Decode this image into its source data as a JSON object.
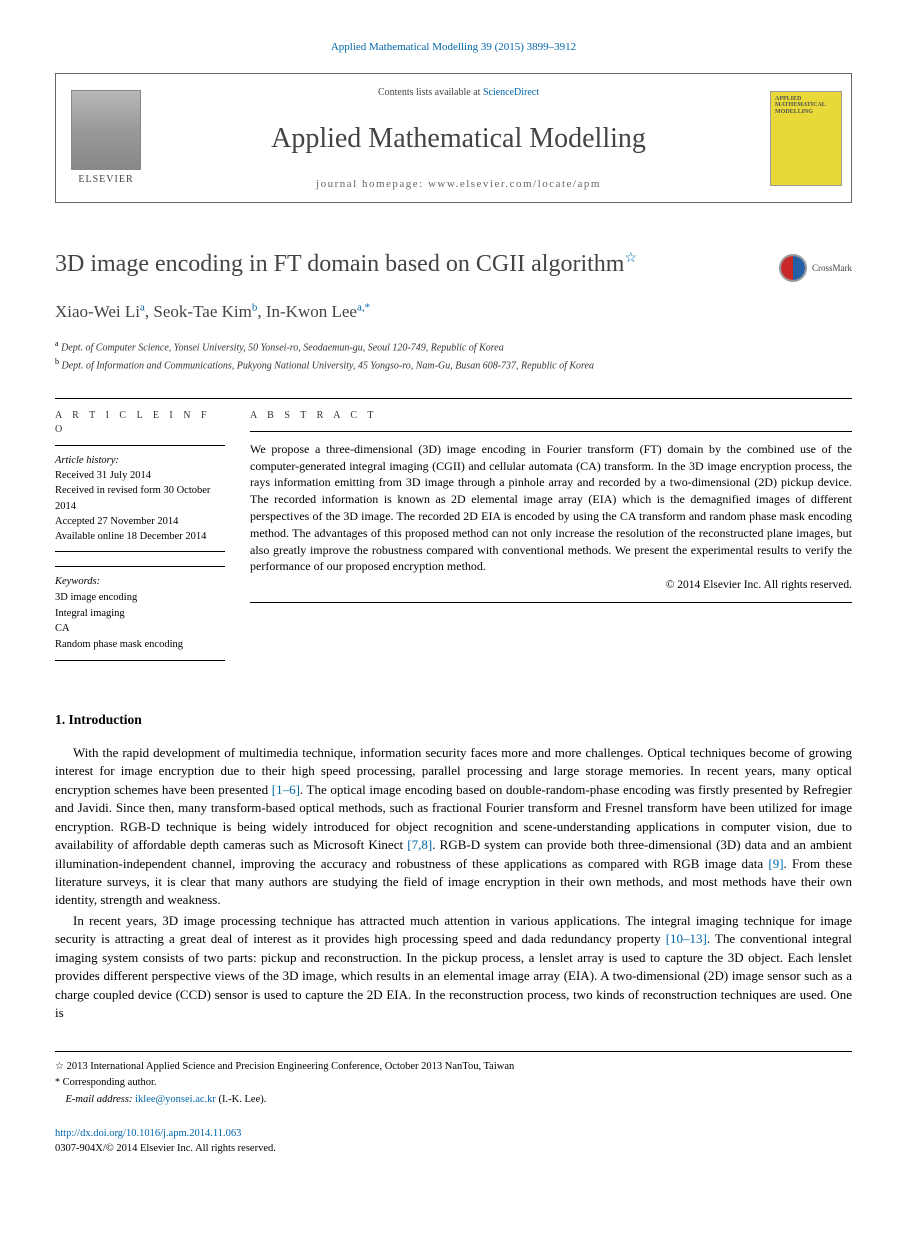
{
  "header": {
    "citation": "Applied Mathematical Modelling 39 (2015) 3899–3912",
    "contents_prefix": "Contents lists available at ",
    "contents_link": "ScienceDirect",
    "journal_name": "Applied Mathematical Modelling",
    "homepage_label": "journal homepage: www.elsevier.com/locate/apm",
    "elsevier_label": "ELSEVIER",
    "cover_title": "APPLIED MATHEMATICAL MODELLING",
    "crossmark_label": "CrossMark"
  },
  "article": {
    "title": "3D image encoding in FT domain based on CGII algorithm",
    "title_note": "☆",
    "authors": [
      {
        "name": "Xiao-Wei Li",
        "aff": "a"
      },
      {
        "name": "Seok-Tae Kim",
        "aff": "b"
      },
      {
        "name": "In-Kwon Lee",
        "aff": "a,*"
      }
    ],
    "authors_html": "Xiao-Wei Li <sup>a</sup>, Seok-Tae Kim <sup>b</sup>, In-Kwon Lee <sup>a,*</sup>",
    "affiliations": {
      "a": "Dept. of Computer Science, Yonsei University, 50 Yonsei-ro, Seodaemun-gu, Seoul 120-749, Republic of Korea",
      "b": "Dept. of Information and Communications, Pukyong National University, 45 Yongso-ro, Nam-Gu, Busan 608-737, Republic of Korea"
    }
  },
  "info": {
    "section_label": "A R T I C L E   I N F O",
    "history_label": "Article history:",
    "history": [
      "Received 31 July 2014",
      "Received in revised form 30 October 2014",
      "Accepted 27 November 2014",
      "Available online 18 December 2014"
    ],
    "keywords_label": "Keywords:",
    "keywords": [
      "3D image encoding",
      "Integral imaging",
      "CA",
      "Random phase mask encoding"
    ]
  },
  "abstract": {
    "section_label": "A B S T R A C T",
    "text": "We propose a three-dimensional (3D) image encoding in Fourier transform (FT) domain by the combined use of the computer-generated integral imaging (CGII) and cellular automata (CA) transform. In the 3D image encryption process, the rays information emitting from 3D image through a pinhole array and recorded by a two-dimensional (2D) pickup device. The recorded information is known as 2D elemental image array (EIA) which is the demagnified images of different perspectives of the 3D image. The recorded 2D EIA is encoded by using the CA transform and random phase mask encoding method. The advantages of this proposed method can not only increase the resolution of the reconstructed plane images, but also greatly improve the robustness compared with conventional methods. We present the experimental results to verify the performance of our proposed encryption method.",
    "copyright": "© 2014 Elsevier Inc. All rights reserved."
  },
  "body": {
    "heading": "1. Introduction",
    "p1_a": "With the rapid development of multimedia technique, information security faces more and more challenges. Optical techniques become of growing interest for image encryption due to their high speed processing, parallel processing and large storage memories. In recent years, many optical encryption schemes have been presented ",
    "p1_ref1": "[1–6]",
    "p1_b": ". The optical image encoding based on double-random-phase encoding was firstly presented by Refregier and Javidi. Since then, many transform-based optical methods, such as fractional Fourier transform and Fresnel transform have been utilized for image encryption. RGB-D technique is being widely introduced for object recognition and scene-understanding applications in computer vision, due to availability of affordable depth cameras such as Microsoft Kinect ",
    "p1_ref2": "[7,8]",
    "p1_c": ". RGB-D system can provide both three-dimensional (3D) data and an ambient illumination-independent channel, improving the accuracy and robustness of these applications as compared with RGB image data ",
    "p1_ref3": "[9]",
    "p1_d": ". From these literature surveys, it is clear that many authors are studying the field of image encryption in their own methods, and most methods have their own identity, strength and weakness.",
    "p2_a": "In recent years, 3D image processing technique has attracted much attention in various applications. The integral imaging technique for image security is attracting a great deal of interest as it provides high processing speed and dada redundancy property ",
    "p2_ref1": "[10–13]",
    "p2_b": ". The conventional integral imaging system consists of two parts: pickup and reconstruction. In the pickup process, a lenslet array is used to capture the 3D object. Each lenslet provides different perspective views of the 3D image, which results in an elemental image array (EIA). A two-dimensional (2D) image sensor such as a charge coupled device (CCD) sensor is used to capture the 2D EIA. In the reconstruction process, two kinds of reconstruction techniques are used. One is"
  },
  "footnotes": {
    "conf_sym": "☆",
    "conf": "2013 International Applied Science and Precision Engineering Conference, October 2013 NanTou, Taiwan",
    "corr_sym": "*",
    "corr": "Corresponding author.",
    "email_label": "E-mail address:",
    "email": "iklee@yonsei.ac.kr",
    "email_person": " (I.-K. Lee)."
  },
  "footer": {
    "doi": "http://dx.doi.org/10.1016/j.apm.2014.11.063",
    "issn_line": "0307-904X/© 2014 Elsevier Inc. All rights reserved."
  },
  "colors": {
    "link": "#0066aa",
    "text": "#000000",
    "heading": "#444444",
    "cover_bg": "#e8d838"
  }
}
